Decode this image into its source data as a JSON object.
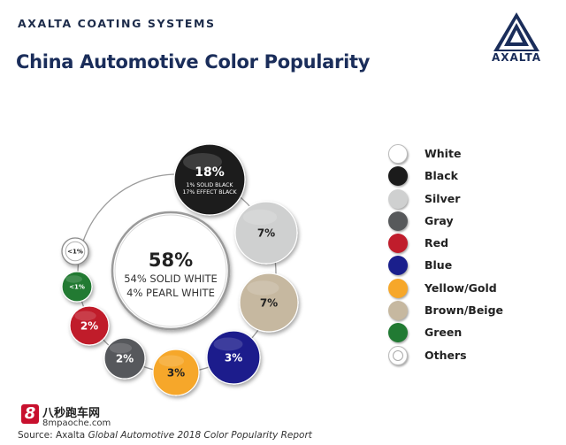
{
  "header": {
    "company": "AXALTA COATING SYSTEMS",
    "title": "China Automotive Color Popularity",
    "logo_text": "AXALTA"
  },
  "chart_data": {
    "type": "bubble",
    "title": "China Automotive Color Popularity",
    "center": {
      "value": "58%",
      "line1": "54% SOLID WHITE",
      "line2": "4% PEARL WHITE",
      "color_name": "White"
    },
    "items": [
      {
        "name": "Black",
        "label": "18%",
        "sub1": "1% SOLID BLACK",
        "sub2": "17% EFFECT BLACK",
        "value": 18,
        "color": "#1b1b1b",
        "text_color": "#ffffff"
      },
      {
        "name": "Silver",
        "label": "7%",
        "value": 7,
        "color": "#cfd0d0",
        "text_color": "#222222"
      },
      {
        "name": "Brown/Beige",
        "label": "7%",
        "value": 7,
        "color": "#c6b8a0",
        "text_color": "#222222"
      },
      {
        "name": "Blue",
        "label": "3%",
        "value": 3,
        "color": "#1a1f8c",
        "text_color": "#ffffff"
      },
      {
        "name": "Yellow/Gold",
        "label": "3%",
        "value": 3,
        "color": "#f6a72a",
        "text_color": "#222222"
      },
      {
        "name": "Gray",
        "label": "2%",
        "value": 2,
        "color": "#57595b",
        "text_color": "#ffffff"
      },
      {
        "name": "Red",
        "label": "2%",
        "value": 2,
        "color": "#c01d2c",
        "text_color": "#ffffff"
      },
      {
        "name": "Green",
        "label": "<1%",
        "value": 0.5,
        "color": "#217a33",
        "text_color": "#ffffff"
      },
      {
        "name": "Others",
        "label": "<1%",
        "value": 0.5,
        "color": "#ffffff",
        "text_color": "#222222",
        "ring": true
      }
    ],
    "legend": [
      {
        "label": "White",
        "color": "#ffffff"
      },
      {
        "label": "Black",
        "color": "#1b1b1b"
      },
      {
        "label": "Silver",
        "color": "#cfd0d0"
      },
      {
        "label": "Gray",
        "color": "#57595b"
      },
      {
        "label": "Red",
        "color": "#c01d2c"
      },
      {
        "label": "Blue",
        "color": "#1a1f8c"
      },
      {
        "label": "Yellow/Gold",
        "color": "#f6a72a"
      },
      {
        "label": "Brown/Beige",
        "color": "#c6b8a0"
      },
      {
        "label": "Green",
        "color": "#217a33"
      },
      {
        "label": "Others",
        "color": "#ffffff",
        "ring": true
      }
    ],
    "legend_position": "right"
  },
  "watermark": {
    "badge": "8",
    "chinese": "八秒跑车网",
    "url": "8mpaoche.com"
  },
  "source": {
    "prefix": "Source: Axalta ",
    "italic": "Global Automotive 2018 Color Popularity Report"
  }
}
